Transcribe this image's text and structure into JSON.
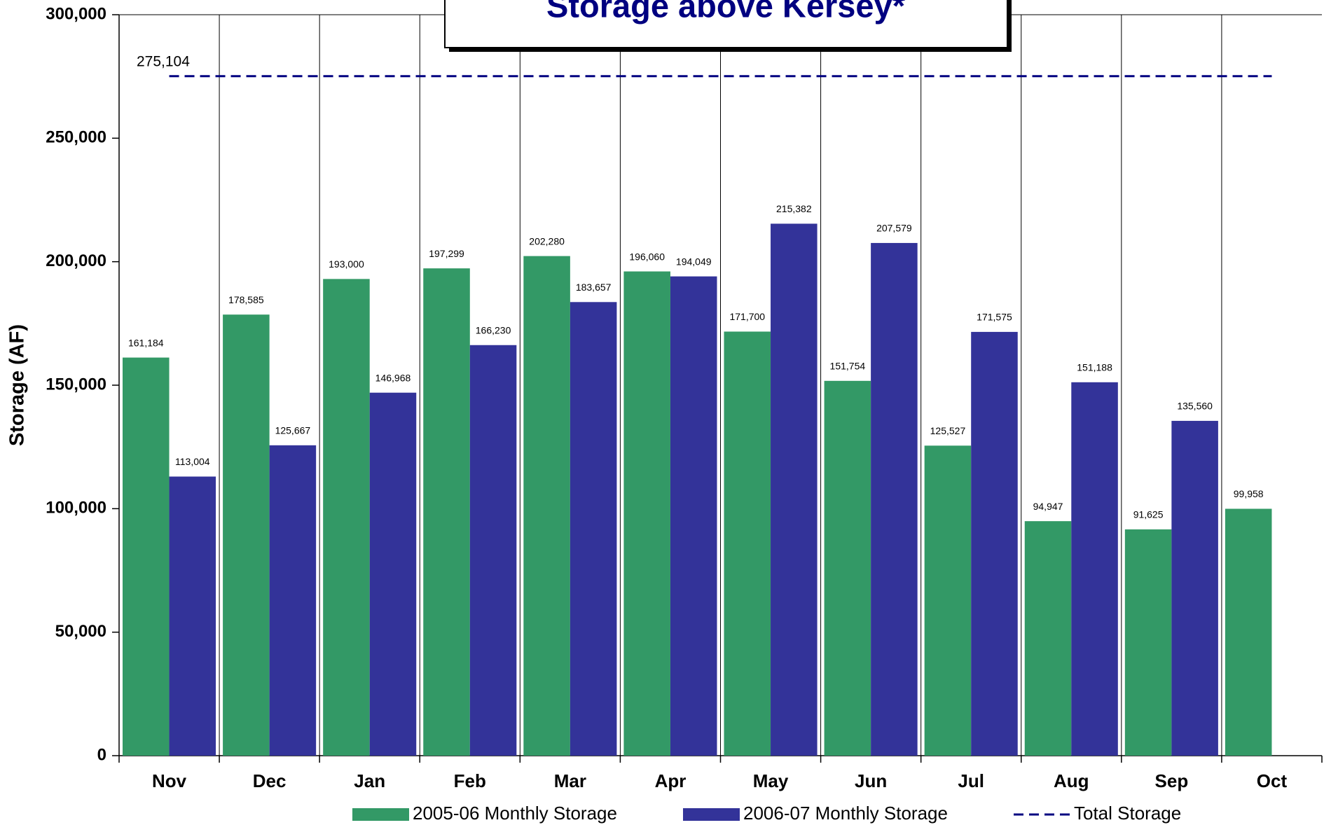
{
  "chart_data": {
    "type": "bar",
    "title": "Storage above Kersey*",
    "y_label": "Storage (AF)",
    "categories": [
      "Nov",
      "Dec",
      "Jan",
      "Feb",
      "Mar",
      "Apr",
      "May",
      "Jun",
      "Jul",
      "Aug",
      "Sep",
      "Oct"
    ],
    "series": [
      {
        "name": "2005-06 Monthly Storage",
        "color": "#339966",
        "values": [
          161184,
          178585,
          193000,
          197299,
          202280,
          196060,
          171700,
          151754,
          125527,
          94947,
          91625,
          99958
        ],
        "value_labels": [
          "161,184",
          "178,585",
          "193,000",
          "197,299",
          "202,280",
          "196,060",
          "171,700",
          "151,754",
          "125,527",
          "94,947",
          "91,625",
          "99,958"
        ]
      },
      {
        "name": "2006-07 Monthly Storage",
        "color": "#333399",
        "values": [
          113004,
          125667,
          146968,
          166230,
          183657,
          194049,
          215382,
          207579,
          171575,
          151188,
          135560,
          null
        ],
        "value_labels": [
          "113,004",
          "125,667",
          "146,968",
          "166,230",
          "183,657",
          "194,049",
          "215,382",
          "207,579",
          "171,575",
          "151,188",
          "135,560",
          null
        ]
      }
    ],
    "reference_line": {
      "name": "Total Storage",
      "value": 275104,
      "label": "275,104",
      "color": "#000080"
    },
    "ylim": [
      0,
      300000
    ],
    "yticks": [
      {
        "value": 0,
        "label": "0"
      },
      {
        "value": 50000,
        "label": "50,000"
      },
      {
        "value": 100000,
        "label": "100,000"
      },
      {
        "value": 150000,
        "label": "150,000"
      },
      {
        "value": 200000,
        "label": "200,000"
      },
      {
        "value": 250000,
        "label": "250,000"
      },
      {
        "value": 300000,
        "label": "300,000"
      }
    ],
    "grid": "x",
    "legend": "bottom"
  }
}
